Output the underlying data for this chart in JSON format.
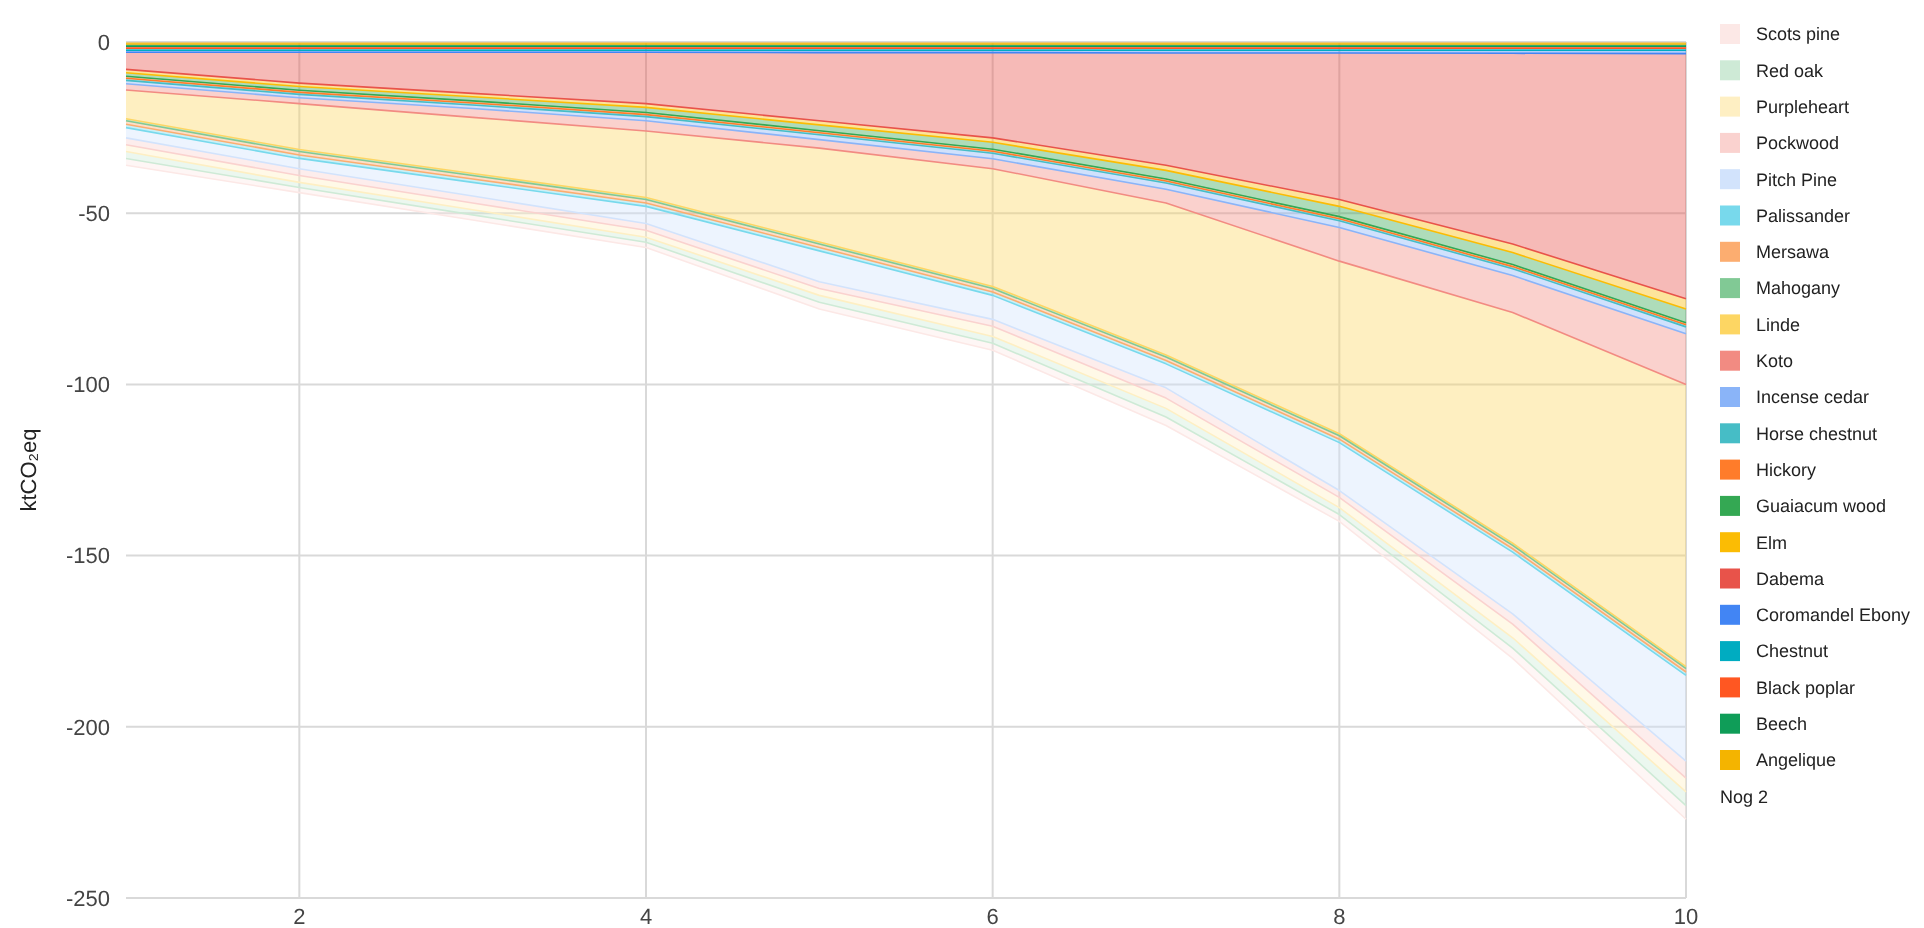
{
  "chart_data": {
    "type": "area",
    "stacked": true,
    "ylabel": "ktCO₂eq",
    "x": [
      1,
      2,
      3,
      4,
      5,
      6,
      7,
      8,
      9,
      10
    ],
    "xlim": [
      1,
      10
    ],
    "xticks": [
      2,
      4,
      6,
      8,
      10
    ],
    "ylim": [
      -250,
      0
    ],
    "yticks": [
      0,
      -50,
      -100,
      -150,
      -200,
      -250
    ],
    "grid": true,
    "legend": "right",
    "annotations": [
      "Nog 2"
    ],
    "series": [
      {
        "name": "Angelique",
        "color": "#f4b400",
        "values": [
          -0.6,
          -0.6,
          -0.6,
          -0.6,
          -0.6,
          -0.6,
          -0.6,
          -0.6,
          -0.6,
          -0.6
        ]
      },
      {
        "name": "Beech",
        "color": "#0f9d58",
        "values": [
          -0.6,
          -0.6,
          -0.6,
          -0.6,
          -0.6,
          -0.6,
          -0.6,
          -0.6,
          -0.6,
          -0.6
        ]
      },
      {
        "name": "Black poplar",
        "color": "#ff5722",
        "values": [
          -0.6,
          -0.6,
          -0.6,
          -0.6,
          -0.6,
          -0.6,
          -0.6,
          -0.6,
          -0.6,
          -0.6
        ]
      },
      {
        "name": "Chestnut",
        "color": "#00acc1",
        "values": [
          -0.6,
          -0.6,
          -0.6,
          -0.6,
          -0.6,
          -0.6,
          -0.6,
          -0.6,
          -0.6,
          -0.6
        ]
      },
      {
        "name": "Coromandel Ebony",
        "color": "#4285f4",
        "values": [
          -0.6,
          -0.6,
          -0.6,
          -0.6,
          -0.7,
          -0.7,
          -0.8,
          -0.8,
          -0.9,
          -1
        ]
      },
      {
        "name": "Dabema",
        "color": "#e8534a",
        "values": [
          -5,
          -9,
          -12,
          -15,
          -19.9,
          -24.9,
          -32.8,
          -42.8,
          -55.7,
          -71.6
        ]
      },
      {
        "name": "Elm",
        "color": "#fbbc04",
        "values": [
          -1,
          -1,
          -1,
          -1.1,
          -1.2,
          -1.3,
          -1.5,
          -2,
          -2.5,
          -3
        ]
      },
      {
        "name": "Guaiacum wood",
        "color": "#34a853",
        "values": [
          -1,
          -1.1,
          -1.2,
          -1.5,
          -1.7,
          -2,
          -2.5,
          -3,
          -3.5,
          -4
        ]
      },
      {
        "name": "Hickory",
        "color": "#ff7c2a",
        "values": [
          -0.6,
          -0.6,
          -0.6,
          -0.6,
          -0.6,
          -0.6,
          -0.6,
          -0.6,
          -0.6,
          -0.6
        ]
      },
      {
        "name": "Horse chestnut",
        "color": "#46bdc6",
        "values": [
          -0.6,
          -0.6,
          -0.6,
          -0.6,
          -0.6,
          -0.6,
          -0.6,
          -0.6,
          -0.6,
          -0.6
        ]
      },
      {
        "name": "Incense cedar",
        "color": "#8ab4f8",
        "values": [
          -1,
          -1,
          -1,
          -1.2,
          -1.4,
          -1.6,
          -1.8,
          -2,
          -2,
          -2
        ]
      },
      {
        "name": "Koto",
        "color": "#f28b82",
        "values": [
          -1.8,
          -1.7,
          -2.6,
          -3,
          -2.5,
          -2.9,
          -4,
          -9.8,
          -10.8,
          -14.8
        ]
      },
      {
        "name": "Linde",
        "color": "#fdd663",
        "values": [
          -8.4,
          -13.4,
          -16.4,
          -19.4,
          -27.4,
          -34.4,
          -44.4,
          -50.4,
          -67.4,
          -82.4
        ]
      },
      {
        "name": "Mahogany",
        "color": "#81c995",
        "values": [
          -0.6,
          -0.6,
          -0.6,
          -0.6,
          -0.6,
          -0.6,
          -0.6,
          -0.6,
          -0.6,
          -0.6
        ]
      },
      {
        "name": "Mersawa",
        "color": "#fcad70",
        "values": [
          -1,
          -1,
          -1,
          -1,
          -1,
          -1,
          -1,
          -1,
          -1,
          -1
        ]
      },
      {
        "name": "Palissander",
        "color": "#78d9ec",
        "values": [
          -1,
          -1,
          -1,
          -1,
          -1,
          -1,
          -1,
          -1,
          -1,
          -1
        ]
      },
      {
        "name": "Pitch Pine",
        "color": "#d2e3fc",
        "values": [
          -3,
          -3,
          -4,
          -5,
          -9,
          -7,
          -7,
          -14,
          -18,
          -25
        ]
      },
      {
        "name": "Pockwood",
        "color": "#fad2cf",
        "values": [
          -2,
          -2,
          -2,
          -2,
          -2,
          -2,
          -3,
          -2,
          -3,
          -5
        ]
      },
      {
        "name": "Purpleheart",
        "color": "#feefc3",
        "values": [
          -2,
          -2,
          -2,
          -2,
          -2,
          -3,
          -3,
          -3,
          -4,
          -4
        ]
      },
      {
        "name": "Red oak",
        "color": "#ceead6",
        "values": [
          -2,
          -1.5,
          -1.5,
          -1.5,
          -2,
          -2,
          -2.5,
          -2,
          -3,
          -4
        ]
      },
      {
        "name": "Scots pine",
        "color": "#fce8e6",
        "values": [
          -2,
          -1.5,
          -1.5,
          -1.5,
          -2,
          -2,
          -2.5,
          -2,
          -3,
          -4
        ]
      }
    ]
  }
}
